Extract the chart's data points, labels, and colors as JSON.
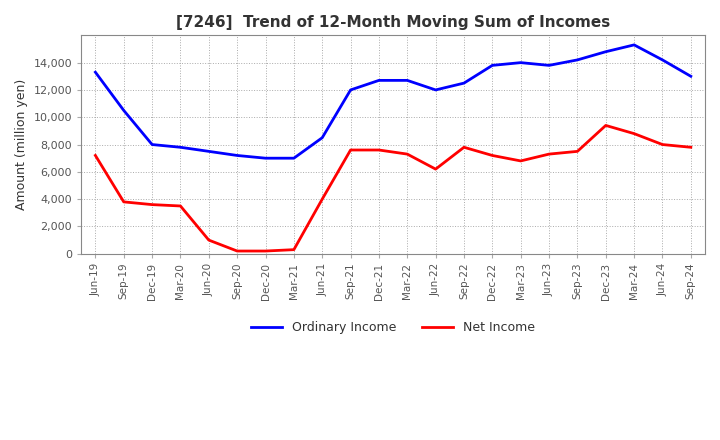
{
  "title": "[7246]  Trend of 12-Month Moving Sum of Incomes",
  "ylabel": "Amount (million yen)",
  "ylim": [
    0,
    16000
  ],
  "yticks": [
    0,
    2000,
    4000,
    6000,
    8000,
    10000,
    12000,
    14000
  ],
  "x_labels": [
    "Jun-19",
    "Sep-19",
    "Dec-19",
    "Mar-20",
    "Jun-20",
    "Sep-20",
    "Dec-20",
    "Mar-21",
    "Jun-21",
    "Sep-21",
    "Dec-21",
    "Mar-22",
    "Jun-22",
    "Sep-22",
    "Dec-22",
    "Mar-23",
    "Jun-23",
    "Sep-23",
    "Dec-23",
    "Mar-24",
    "Jun-24",
    "Sep-24"
  ],
  "ordinary_income": [
    13300,
    10500,
    8000,
    7800,
    7500,
    7200,
    7000,
    7000,
    8500,
    12000,
    12700,
    12700,
    12000,
    12500,
    13800,
    14000,
    13800,
    14200,
    14800,
    15300,
    14200,
    13000
  ],
  "net_income": [
    7200,
    3800,
    3600,
    3500,
    1000,
    200,
    200,
    300,
    4000,
    7600,
    7600,
    7300,
    6200,
    7800,
    7200,
    6800,
    7300,
    7500,
    9400,
    8800,
    8000,
    7800
  ],
  "ordinary_color": "#0000ff",
  "net_color": "#ff0000",
  "line_width": 2.0,
  "background_color": "#ffffff",
  "grid_color": "#aaaaaa",
  "border_color": "#888888"
}
